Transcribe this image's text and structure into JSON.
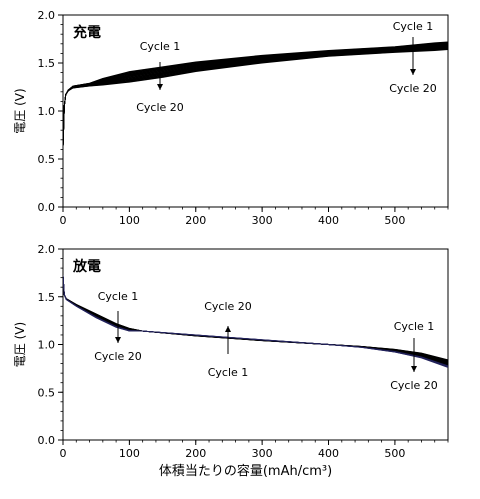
{
  "chart_data": [
    {
      "type": "line",
      "panel_label": "充電",
      "ylabel": "電圧 (V)",
      "xlabel": "",
      "xlim": [
        0,
        580
      ],
      "ylim": [
        0,
        2.0
      ],
      "xticks": [
        0,
        100,
        200,
        300,
        400,
        500
      ],
      "yticks": [
        "0.0",
        "0.5",
        "1.0",
        "1.5",
        "2.0"
      ],
      "grid": false,
      "series": [
        {
          "name": "Cycle 1",
          "x": [
            0,
            1,
            2,
            4,
            8,
            15,
            40,
            60,
            100,
            150,
            200,
            300,
            400,
            500,
            560,
            580
          ],
          "values": [
            0.62,
            0.85,
            1.05,
            1.17,
            1.22,
            1.26,
            1.29,
            1.34,
            1.41,
            1.46,
            1.51,
            1.58,
            1.63,
            1.67,
            1.71,
            1.72
          ]
        },
        {
          "name": "Cycle 20",
          "x": [
            0,
            1,
            2,
            4,
            8,
            15,
            40,
            60,
            100,
            150,
            200,
            300,
            400,
            500,
            560,
            580
          ],
          "values": [
            0.62,
            0.85,
            1.05,
            1.17,
            1.21,
            1.24,
            1.26,
            1.27,
            1.3,
            1.35,
            1.41,
            1.5,
            1.57,
            1.61,
            1.63,
            1.64
          ]
        }
      ],
      "intermediate_curves": 18,
      "annotations": [
        {
          "text": "Cycle 1",
          "points_to": {
            "x": 150,
            "y": 1.4
          },
          "direction": "down"
        },
        {
          "text": "Cycle 20",
          "points_to": {
            "x": 150,
            "y": 1.4
          },
          "direction": "down"
        },
        {
          "text": "Cycle 1",
          "points_to": {
            "x": 525,
            "y": 1.62
          },
          "direction": "down"
        },
        {
          "text": "Cycle 20",
          "points_to": {
            "x": 525,
            "y": 1.62
          },
          "direction": "down"
        }
      ]
    },
    {
      "type": "line",
      "panel_label": "放電",
      "ylabel": "電圧 (V)",
      "xlabel": "体積当たりの容量(mAh/cm³)",
      "xlim": [
        0,
        580
      ],
      "ylim": [
        0,
        2.0
      ],
      "xticks": [
        0,
        100,
        200,
        300,
        400,
        500
      ],
      "yticks": [
        "0.0",
        "0.5",
        "1.0",
        "1.5",
        "2.0"
      ],
      "grid": false,
      "series": [
        {
          "name": "Cycle 1",
          "x": [
            0,
            2,
            5,
            20,
            50,
            80,
            100,
            120,
            200,
            300,
            400,
            450,
            500,
            540,
            580
          ],
          "values": [
            1.72,
            1.52,
            1.48,
            1.42,
            1.32,
            1.22,
            1.17,
            1.14,
            1.09,
            1.04,
            1.0,
            0.98,
            0.95,
            0.91,
            0.84
          ]
        },
        {
          "name": "Cycle 20",
          "x": [
            0,
            2,
            5,
            20,
            50,
            80,
            100,
            120,
            200,
            300,
            400,
            450,
            500,
            540,
            580
          ],
          "values": [
            1.72,
            1.52,
            1.47,
            1.4,
            1.28,
            1.18,
            1.14,
            1.14,
            1.1,
            1.05,
            1.0,
            0.97,
            0.92,
            0.86,
            0.76
          ]
        }
      ],
      "intermediate_curves": 18,
      "annotations": [
        {
          "text": "Cycle 1",
          "points_to": {
            "x": 85,
            "y": 1.18
          },
          "direction": "down"
        },
        {
          "text": "Cycle 20",
          "points_to": {
            "x": 85,
            "y": 1.18
          },
          "direction": "down"
        },
        {
          "text": "Cycle 20",
          "points_to": {
            "x": 255,
            "y": 1.07
          },
          "direction": "up"
        },
        {
          "text": "Cycle 1",
          "points_to": {
            "x": 255,
            "y": 1.07
          },
          "direction": "up"
        },
        {
          "text": "Cycle 1",
          "points_to": {
            "x": 525,
            "y": 0.93
          },
          "direction": "down"
        },
        {
          "text": "Cycle 20",
          "points_to": {
            "x": 525,
            "y": 0.93
          },
          "direction": "down"
        }
      ]
    }
  ]
}
